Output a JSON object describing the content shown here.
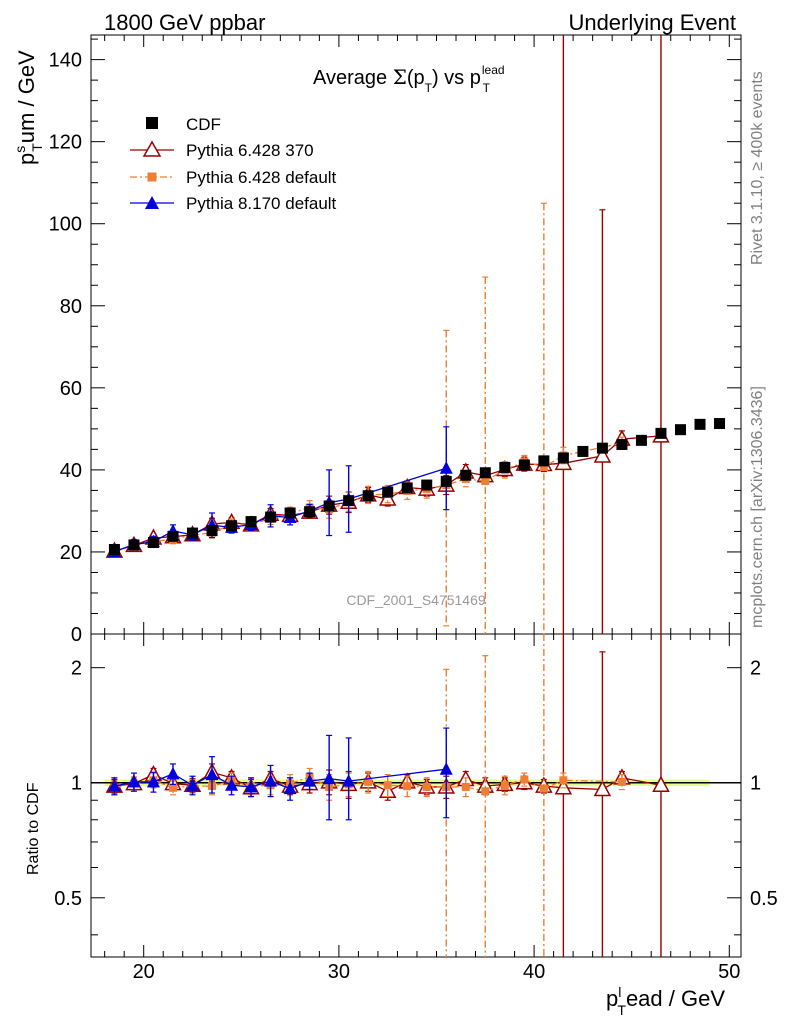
{
  "header": {
    "left": "1800 GeV ppbar",
    "right": "Underlying Event"
  },
  "side": {
    "rivet": "Rivet 3.1.10, ≥ 400k events",
    "mcplots": "mcplots.cern.ch [arXiv:1306.3436]"
  },
  "plot_title": {
    "prefix": "Average ",
    "sigma": "Σ",
    "mid": "(p",
    "sub1": "T",
    "mid2": ") vs p",
    "sub2": "T",
    "sup2": "lead"
  },
  "ylabel_top": {
    "main": "p",
    "sup": "s",
    "sub": "T",
    "rest": "um / GeV"
  },
  "ylabel_bottom": "Ratio to CDF",
  "xlabel": {
    "main": "p",
    "sup": "l",
    "sub": "T",
    "rest": "ead / GeV"
  },
  "watermark": "CDF_2001_S4751469",
  "colors": {
    "cdf": "#000000",
    "py6_370": "#990000",
    "py6_default": "#ee7e33",
    "py8": "#0000dd",
    "band": "#ccff33"
  },
  "chart_data": [
    {
      "type": "scatter",
      "panel": "main",
      "xlabel": "p_T^lead / GeV",
      "ylabel": "p_T^sum / GeV",
      "xlim": [
        17.3,
        50.6
      ],
      "ylim": [
        0,
        146
      ],
      "yticks": [
        0,
        20,
        40,
        60,
        80,
        100,
        120,
        140
      ],
      "xticks": [
        20,
        30,
        40,
        50
      ],
      "legend_position": "top-left",
      "series": [
        {
          "name": "CDF",
          "marker": "square",
          "x": [
            18.5,
            19.5,
            20.5,
            21.5,
            22.5,
            23.5,
            24.5,
            25.5,
            26.5,
            27.5,
            28.5,
            29.5,
            30.5,
            31.5,
            32.5,
            33.5,
            34.5,
            35.5,
            36.5,
            37.5,
            38.5,
            39.5,
            40.5,
            41.5,
            42.5,
            43.5,
            44.5,
            45.5,
            46.5,
            47.5,
            48.5,
            49.5
          ],
          "y": [
            20.6,
            21.7,
            22.3,
            23.8,
            24.6,
            25.2,
            26.4,
            27.4,
            28.5,
            29.5,
            29.8,
            31.2,
            32.5,
            33.7,
            34.6,
            35.6,
            36.3,
            37.2,
            38.7,
            39.3,
            40.6,
            41.2,
            42.2,
            42.9,
            44.5,
            45.3,
            46.2,
            47.2,
            48.9,
            49.8,
            51.1,
            51.3
          ]
        },
        {
          "name": "Pythia 6.428 370",
          "marker": "open-triangle",
          "x": [
            18.5,
            19.5,
            20.5,
            21.5,
            22.5,
            23.5,
            24.5,
            25.5,
            26.5,
            27.5,
            28.5,
            29.5,
            30.5,
            31.5,
            32.5,
            33.5,
            34.5,
            35.5,
            36.5,
            37.5,
            38.5,
            39.5,
            40.5,
            41.5,
            43.5,
            44.5,
            46.5
          ],
          "y": [
            20.2,
            21.6,
            23.4,
            23.7,
            24.2,
            26.8,
            27.2,
            26.6,
            29.2,
            28.9,
            29.7,
            31.4,
            32.1,
            33.9,
            32.9,
            35.7,
            35.3,
            36.3,
            39.5,
            38.6,
            40.1,
            41.4,
            41.3,
            41.6,
            43.4,
            47.5,
            48.3
          ],
          "yerr_high": [
            21,
            22.5,
            24.3,
            24.7,
            25.2,
            28.2,
            28.3,
            27.8,
            30.6,
            30.4,
            31.2,
            33.6,
            34.6,
            35.7,
            34.6,
            37.3,
            37,
            38.6,
            41.3,
            40.4,
            41.8,
            43.1,
            43,
            146,
            103.4,
            49.5,
            146
          ],
          "yerr_low": [
            19.4,
            20.7,
            22.5,
            22.8,
            23.2,
            25.5,
            26.1,
            25.4,
            27.8,
            27.5,
            28.2,
            29.2,
            29.6,
            32.1,
            31.2,
            34.1,
            33.6,
            34,
            37.7,
            36.8,
            38.4,
            39.7,
            39.6,
            0,
            0,
            45.5,
            0
          ]
        },
        {
          "name": "Pythia 6.428 default",
          "marker": "filled-square-small",
          "x": [
            18.5,
            19.5,
            20.5,
            21.5,
            22.5,
            23.5,
            24.5,
            25.5,
            26.5,
            27.5,
            28.5,
            29.5,
            30.5,
            31.5,
            32.5,
            33.5,
            34.5,
            35.5,
            36.5,
            37.5,
            38.5,
            39.5,
            40.5,
            41.5,
            44.5
          ],
          "y": [
            20.0,
            21.6,
            22.6,
            23.1,
            24.1,
            24.7,
            26.7,
            26.8,
            28.1,
            29.4,
            30.8,
            30.4,
            32.2,
            33.9,
            34.1,
            34.9,
            35.3,
            36.3,
            37.8,
            37.3,
            40.0,
            42.0,
            40.7,
            43.5,
            46.5
          ],
          "yerr_high": [
            21,
            22.6,
            23.7,
            24.2,
            25.2,
            26,
            28,
            28.1,
            29.5,
            30.9,
            32.5,
            32.6,
            34.5,
            36,
            36.2,
            37,
            37.5,
            74,
            39.7,
            87,
            42,
            43.5,
            105,
            45.5,
            48
          ],
          "yerr_low": [
            19.0,
            20.6,
            21.5,
            22,
            23,
            23.4,
            25.4,
            25.5,
            26.7,
            27.9,
            29.1,
            28.2,
            29.9,
            31.8,
            32,
            32.8,
            33.1,
            2,
            35.9,
            0,
            38,
            40.5,
            0,
            41.5,
            45
          ]
        },
        {
          "name": "Pythia 8.170 default",
          "marker": "filled-triangle",
          "x": [
            18.5,
            19.5,
            20.5,
            21.5,
            22.5,
            23.5,
            24.5,
            25.5,
            26.5,
            27.5,
            28.5,
            29.5,
            30.5,
            35.5
          ],
          "y": [
            20.1,
            21.8,
            22.5,
            25.1,
            24.2,
            26.5,
            26.0,
            26.7,
            28.8,
            28.4,
            30.0,
            32.0,
            32.9,
            40.4
          ],
          "yerr_high": [
            21.2,
            23,
            23.8,
            26.6,
            25.6,
            29.5,
            27.4,
            28.2,
            31.5,
            30.2,
            31.6,
            40,
            41,
            50.5
          ],
          "yerr_low": [
            19,
            20.6,
            21.2,
            23.6,
            22.8,
            23.5,
            24.6,
            25.2,
            26.1,
            26.6,
            28.4,
            24,
            24.8,
            30.3
          ]
        }
      ]
    },
    {
      "type": "scatter",
      "panel": "ratio",
      "ylabel": "Ratio to CDF",
      "xlim": [
        17.3,
        50.6
      ],
      "ylim": [
        0.35,
        2.45
      ],
      "yscale": "log",
      "yticks": [
        0.5,
        1,
        2
      ],
      "ytick_labels": [
        "0.5",
        "1",
        "2"
      ],
      "xticks": [
        20,
        30,
        40,
        50
      ],
      "xtick_labels": [
        "20",
        "30",
        "40",
        "50"
      ],
      "reference_line": 1,
      "band": [
        0.98,
        1.02
      ],
      "series": [
        {
          "name": "Pythia 6.428 370",
          "x": [
            18.5,
            19.5,
            20.5,
            21.5,
            22.5,
            23.5,
            24.5,
            25.5,
            26.5,
            27.5,
            28.5,
            29.5,
            30.5,
            31.5,
            32.5,
            33.5,
            34.5,
            35.5,
            36.5,
            37.5,
            38.5,
            39.5,
            40.5,
            41.5,
            43.5,
            44.5,
            46.5
          ],
          "y": [
            0.98,
            0.995,
            1.05,
            0.995,
            0.985,
            1.065,
            1.03,
            0.97,
            1.025,
            0.98,
            0.995,
            1.005,
            0.99,
            1.005,
            0.95,
            1.005,
            0.975,
            0.975,
            1.02,
            0.98,
            0.99,
            1.0,
            0.98,
            0.97,
            0.96,
            1.03,
            0.985
          ],
          "yerr_high": [
            1.02,
            1.035,
            1.09,
            1.035,
            1.025,
            1.12,
            1.07,
            1.02,
            1.07,
            1.03,
            1.05,
            1.08,
            1.07,
            1.06,
            1.0,
            1.05,
            1.02,
            1.04,
            1.07,
            1.03,
            1.03,
            1.04,
            1.02,
            2.45,
            2.2,
            1.07,
            2.45
          ],
          "yerr_low": [
            0.94,
            0.955,
            1.01,
            0.955,
            0.945,
            1.01,
            0.99,
            0.92,
            0.98,
            0.93,
            0.94,
            0.93,
            0.91,
            0.95,
            0.9,
            0.96,
            0.93,
            0.91,
            0.97,
            0.93,
            0.95,
            0.96,
            0.94,
            0.35,
            0.35,
            0.99,
            0.35
          ]
        },
        {
          "name": "Pythia 6.428 default",
          "x": [
            18.5,
            19.5,
            20.5,
            21.5,
            22.5,
            23.5,
            24.5,
            25.5,
            26.5,
            27.5,
            28.5,
            29.5,
            30.5,
            31.5,
            32.5,
            33.5,
            34.5,
            35.5,
            36.5,
            37.5,
            38.5,
            39.5,
            40.5,
            41.5,
            44.5
          ],
          "y": [
            0.97,
            0.995,
            1.015,
            0.97,
            0.98,
            0.98,
            1.01,
            0.98,
            0.985,
            0.995,
            1.035,
            0.975,
            0.99,
            1.005,
            0.985,
            0.98,
            0.975,
            0.975,
            0.975,
            0.95,
            0.985,
            1.02,
            0.965,
            1.015,
            1.005
          ],
          "yerr_high": [
            1.01,
            1.035,
            1.06,
            1.01,
            1.02,
            1.03,
            1.06,
            1.03,
            1.04,
            1.05,
            1.09,
            1.05,
            1.06,
            1.07,
            1.05,
            1.04,
            1.03,
            1.98,
            1.03,
            2.15,
            1.04,
            1.06,
            2.45,
            1.06,
            1.05
          ],
          "yerr_low": [
            0.93,
            0.955,
            0.97,
            0.93,
            0.94,
            0.93,
            0.96,
            0.93,
            0.93,
            0.94,
            0.98,
            0.9,
            0.92,
            0.94,
            0.92,
            0.92,
            0.92,
            0.35,
            0.92,
            0.35,
            0.93,
            0.98,
            0.35,
            0.97,
            0.96
          ]
        },
        {
          "name": "Pythia 8.170 default",
          "x": [
            18.5,
            19.5,
            20.5,
            21.5,
            22.5,
            23.5,
            24.5,
            25.5,
            26.5,
            27.5,
            28.5,
            29.5,
            30.5,
            35.5
          ],
          "y": [
            0.98,
            1.005,
            1.005,
            1.055,
            0.985,
            1.05,
            0.985,
            0.975,
            1.01,
            0.965,
            1.01,
            1.025,
            1.01,
            1.085
          ],
          "yerr_high": [
            1.03,
            1.06,
            1.065,
            1.12,
            1.04,
            1.17,
            1.04,
            1.03,
            1.11,
            1.03,
            1.06,
            1.33,
            1.31,
            1.39
          ],
          "yerr_low": [
            0.93,
            0.95,
            0.945,
            0.99,
            0.93,
            0.94,
            0.93,
            0.92,
            0.92,
            0.9,
            0.96,
            0.8,
            0.8,
            0.81
          ]
        }
      ]
    }
  ]
}
